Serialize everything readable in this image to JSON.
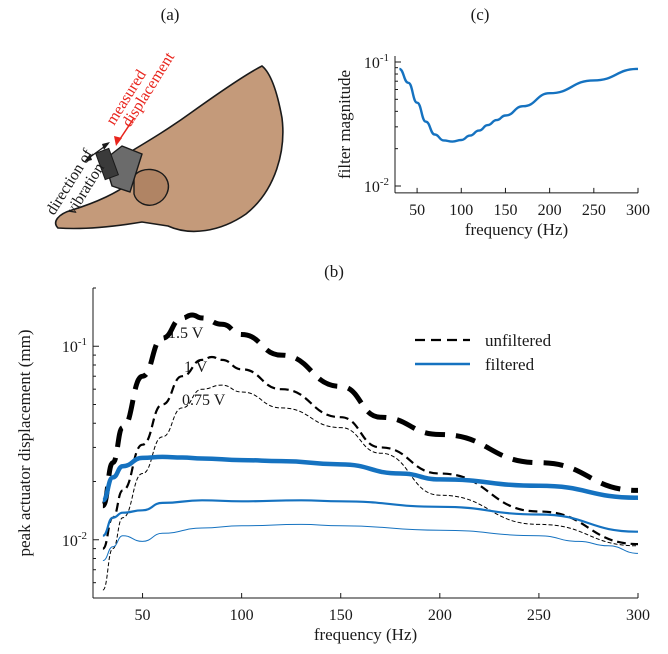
{
  "panel_a": {
    "label": "(a)",
    "direction_label_line1": "direction of",
    "direction_label_line2": "vibration",
    "measured_label_line1": "measured",
    "measured_label_line2": "displacement",
    "skin_color": "#c49a7a",
    "ring_color": "#6b6b6b",
    "arrow_color": "#e8241c"
  },
  "panel_c": {
    "label": "(c)"
  },
  "panel_b": {
    "label": "(b)",
    "voltage_labels": [
      "1.5 V",
      "1 V",
      "0.75 V"
    ]
  },
  "colors": {
    "filtered": "#1572c0",
    "unfiltered": "#000000"
  },
  "chart_data": [
    {
      "id": "c",
      "type": "line",
      "xlabel": "frequency (Hz)",
      "ylabel": "filter magnitude",
      "xlim": [
        25,
        300
      ],
      "ylim": [
        0.01,
        0.1
      ],
      "yscale": "log",
      "xticks": [
        50,
        100,
        150,
        200,
        250,
        300
      ],
      "yticks": [
        0.01,
        0.1
      ],
      "ytick_labels": [
        "10-2",
        "10-1"
      ],
      "series": [
        {
          "x": [
            30,
            40,
            50,
            60,
            70,
            80,
            90,
            100,
            110,
            120,
            130,
            140,
            150,
            170,
            200,
            250,
            300
          ],
          "y": [
            0.088,
            0.068,
            0.047,
            0.033,
            0.026,
            0.0233,
            0.0228,
            0.0235,
            0.0255,
            0.028,
            0.031,
            0.034,
            0.037,
            0.044,
            0.056,
            0.071,
            0.088
          ],
          "color": "#1572c0"
        }
      ]
    },
    {
      "id": "b",
      "type": "line",
      "xlabel": "frequency (Hz)",
      "ylabel": "peak actuator displacement (mm)",
      "xlim": [
        25,
        300
      ],
      "ylim": [
        0.005,
        0.2
      ],
      "yscale": "log",
      "xticks": [
        50,
        100,
        150,
        200,
        250,
        300
      ],
      "yticks": [
        0.01,
        0.1
      ],
      "ytick_labels": [
        "10-2",
        "10-1"
      ],
      "legend": {
        "position": "top-right",
        "entries": [
          "unfiltered",
          "filtered"
        ]
      },
      "series": [
        {
          "name": "unfiltered",
          "voltage": "1.5 V",
          "style": "dashed",
          "color": "#000000",
          "width": 5,
          "x": [
            30,
            35,
            40,
            50,
            60,
            70,
            75,
            80,
            90,
            100,
            120,
            150,
            170,
            200,
            250,
            300
          ],
          "y": [
            0.015,
            0.025,
            0.038,
            0.07,
            0.11,
            0.14,
            0.145,
            0.14,
            0.13,
            0.115,
            0.09,
            0.062,
            0.043,
            0.035,
            0.025,
            0.018
          ]
        },
        {
          "name": "unfiltered",
          "voltage": "1 V",
          "style": "dashed",
          "color": "#000000",
          "width": 2.2,
          "x": [
            30,
            35,
            40,
            50,
            60,
            70,
            80,
            85,
            90,
            100,
            120,
            150,
            170,
            200,
            250,
            300
          ],
          "y": [
            0.009,
            0.013,
            0.018,
            0.031,
            0.05,
            0.07,
            0.085,
            0.088,
            0.085,
            0.076,
            0.06,
            0.043,
            0.03,
            0.022,
            0.014,
            0.0095
          ]
        },
        {
          "name": "unfiltered",
          "voltage": "0.75 V",
          "style": "dashed",
          "color": "#000000",
          "width": 1,
          "x": [
            30,
            35,
            40,
            50,
            60,
            70,
            80,
            90,
            100,
            120,
            150,
            170,
            200,
            250,
            300
          ],
          "y": [
            0.0055,
            0.009,
            0.013,
            0.022,
            0.034,
            0.048,
            0.06,
            0.063,
            0.058,
            0.048,
            0.038,
            0.028,
            0.017,
            0.012,
            0.0093
          ]
        },
        {
          "name": "filtered",
          "voltage": "1.5 V",
          "style": "solid",
          "color": "#1572c0",
          "width": 4.5,
          "x": [
            30,
            35,
            40,
            50,
            60,
            70,
            80,
            100,
            120,
            150,
            180,
            200,
            250,
            300
          ],
          "y": [
            0.016,
            0.021,
            0.024,
            0.0265,
            0.0268,
            0.0266,
            0.0263,
            0.0258,
            0.0255,
            0.0245,
            0.022,
            0.0205,
            0.019,
            0.0165
          ]
        },
        {
          "name": "filtered",
          "voltage": "1 V",
          "style": "solid",
          "color": "#1572c0",
          "width": 2.2,
          "x": [
            30,
            35,
            40,
            50,
            60,
            80,
            100,
            130,
            150,
            200,
            250,
            300
          ],
          "y": [
            0.0105,
            0.013,
            0.0138,
            0.0142,
            0.0155,
            0.016,
            0.0158,
            0.016,
            0.0158,
            0.0148,
            0.0135,
            0.011
          ]
        },
        {
          "name": "filtered",
          "voltage": "0.75 V",
          "style": "solid",
          "color": "#1572c0",
          "width": 1,
          "x": [
            30,
            35,
            40,
            50,
            60,
            80,
            100,
            130,
            150,
            200,
            250,
            270,
            285,
            300
          ],
          "y": [
            0.0078,
            0.0092,
            0.0105,
            0.0098,
            0.0108,
            0.0115,
            0.0118,
            0.012,
            0.0118,
            0.0112,
            0.0105,
            0.0098,
            0.0093,
            0.0085
          ]
        }
      ]
    }
  ]
}
